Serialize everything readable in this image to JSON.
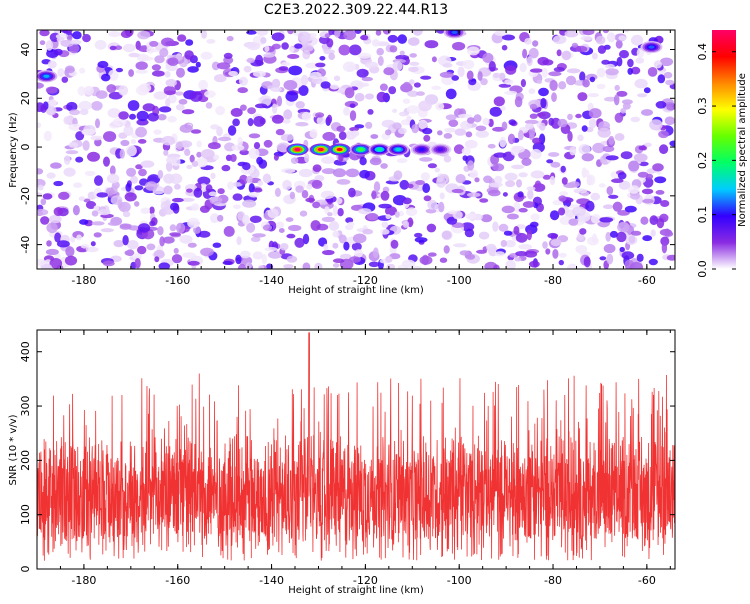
{
  "title": "C2E3.2022.309.22.44.R13",
  "chart_data": [
    {
      "type": "heatmap",
      "xlabel": "Height of straight line (km)",
      "ylabel": "Frequency (Hz)",
      "xlim": [
        -190,
        -54
      ],
      "ylim": [
        -50,
        48
      ],
      "xticks": [
        "-180",
        "-160",
        "-140",
        "-120",
        "-100",
        "-80",
        "-60"
      ],
      "yticks": [
        "40",
        "20",
        "0",
        "-20",
        "-40"
      ],
      "colorbar": {
        "label": "Normalized spectral amplitude",
        "ticks": [
          "0.0",
          "0.1",
          "0.2",
          "0.3",
          "0.4"
        ],
        "range": [
          0,
          0.44
        ],
        "colors": [
          "#ffffff",
          "#8a2be2",
          "#3300ff",
          "#00ccff",
          "#00ff66",
          "#66ff00",
          "#ffff00",
          "#ff8800",
          "#ff0000",
          "#ff0066"
        ]
      },
      "strong_features": [
        {
          "x": -134.5,
          "y": -1,
          "amp": 0.44
        },
        {
          "x": -129.5,
          "y": -1,
          "amp": 0.42
        },
        {
          "x": -125.5,
          "y": -1,
          "amp": 0.4
        },
        {
          "x": -121,
          "y": -1,
          "amp": 0.22
        },
        {
          "x": -117,
          "y": -1,
          "amp": 0.18
        },
        {
          "x": -113,
          "y": -1,
          "amp": 0.16
        },
        {
          "x": -108,
          "y": -1,
          "amp": 0.1
        },
        {
          "x": -104,
          "y": -1,
          "amp": 0.08
        },
        {
          "x": -101,
          "y": 47,
          "amp": 0.12
        },
        {
          "x": -188,
          "y": 29,
          "amp": 0.14
        },
        {
          "x": -59,
          "y": 41,
          "amp": 0.12
        }
      ]
    },
    {
      "type": "line",
      "xlabel": "Height of straight line (km)",
      "ylabel": "SNR (10 * v/v)",
      "xlim": [
        -190,
        -54
      ],
      "ylim": [
        0,
        440
      ],
      "xticks": [
        "-180",
        "-160",
        "-140",
        "-120",
        "-100",
        "-80",
        "-60"
      ],
      "yticks": [
        "0",
        "100",
        "200",
        "300",
        "400"
      ],
      "color": "#f03232",
      "baseline_mean": 130,
      "peak": {
        "x": -132,
        "y": 435
      }
    }
  ]
}
